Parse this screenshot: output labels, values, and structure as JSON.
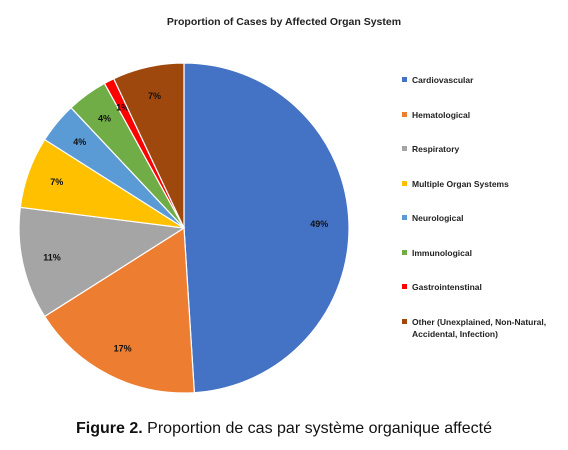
{
  "caption": {
    "figure_label": "Figure 2.",
    "text": "Proportion de cas par système organique affecté"
  },
  "chart_data": {
    "type": "pie",
    "title": "Proportion of Cases by Affected Organ System",
    "legend_position": "right",
    "slices": [
      {
        "name": "Cardiovascular",
        "value": 49,
        "label": "49%",
        "color": "#4472C4"
      },
      {
        "name": "Hematological",
        "value": 17,
        "label": "17%",
        "color": "#ED7D31"
      },
      {
        "name": "Respiratory",
        "value": 11,
        "label": "11%",
        "color": "#A5A5A5"
      },
      {
        "name": "Multiple Organ Systems",
        "value": 7,
        "label": "7%",
        "color": "#FFC000"
      },
      {
        "name": "Neurological",
        "value": 4,
        "label": "4%",
        "color": "#5B9BD5"
      },
      {
        "name": "Immunological",
        "value": 4,
        "label": "4%",
        "color": "#70AD47"
      },
      {
        "name": "Gastrointenstinal",
        "value": 1,
        "label": "1%",
        "color": "#FF0000"
      },
      {
        "name": "Other (Unexplained, Non-Natural, Accidental, Infection)",
        "value": 7,
        "label": "7%",
        "color": "#9E480E"
      }
    ]
  }
}
